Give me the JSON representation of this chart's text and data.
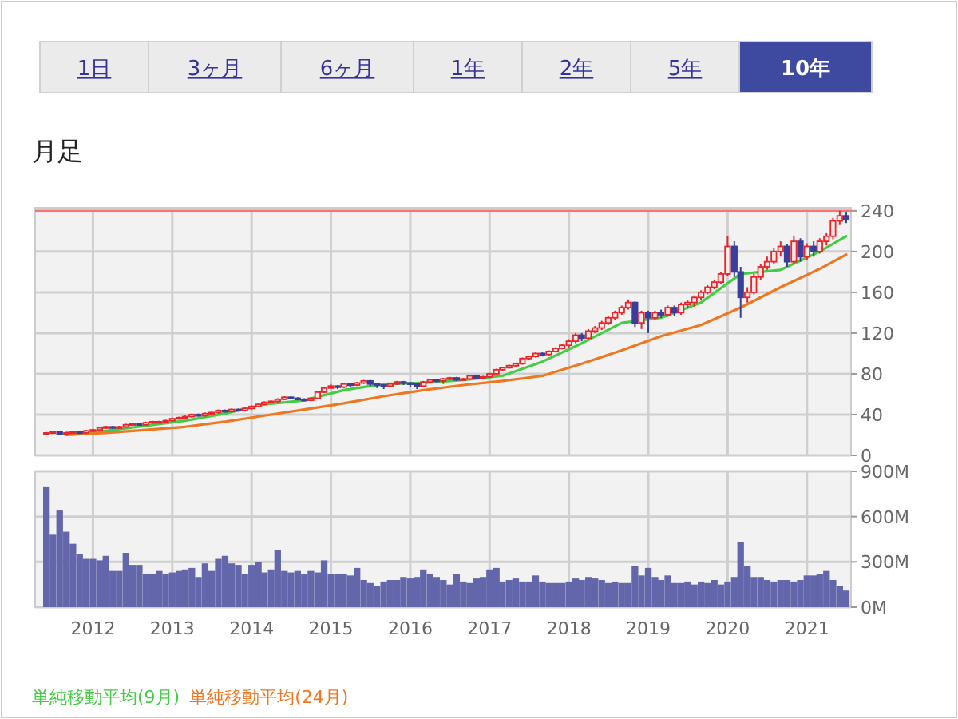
{
  "chart_data": [
    {
      "type": "other",
      "categories": [
        "1日",
        "3ヶ月",
        "6ヶ月",
        "1年",
        "2年",
        "5年",
        "10年"
      ],
      "colors": [
        "#ebebeb",
        "#ebebeb",
        "#ebebeb",
        "#ebebeb",
        "#ebebeb",
        "#ebebeb",
        "#3d4aa0"
      ]
    },
    {
      "type": "candlestick",
      "title": "月足",
      "xlim": [
        "2011-04-10",
        "2021-07-23"
      ],
      "ylim": [
        0,
        243
      ],
      "yticks": [
        0,
        40,
        80,
        120,
        160,
        200,
        240
      ],
      "xticks": [
        {
          "value": "2012-01-01",
          "label": null
        },
        {
          "value": "2013-01-01",
          "label": null
        },
        {
          "value": "2014-01-01",
          "label": null
        },
        {
          "value": "2015-01-01",
          "label": null
        },
        {
          "value": "2016-01-01",
          "label": null
        },
        {
          "value": "2017-01-01",
          "label": null
        },
        {
          "value": "2018-01-01",
          "label": null
        },
        {
          "value": "2019-01-01",
          "label": null
        },
        {
          "value": "2020-01-01",
          "label": null
        },
        {
          "value": "2021-01-01",
          "label": null
        }
      ],
      "tick_labels": "y",
      "grid": true,
      "legend": "bottom",
      "colors": [
        "#e8262a",
        "#e8262a",
        "#3a3f9c",
        "#e8262a",
        "#e8262a",
        "#3a3f9c",
        "#e8262a",
        "#e8262a",
        "#e8262a",
        "#e8262a",
        "#3a3f9c",
        "#e8262a",
        "#e8262a",
        "#e8262a",
        "#3a3f9c",
        "#e8262a",
        "#e8262a",
        "#e8262a",
        "#e8262a",
        "#e8262a",
        "#e8262a",
        "#e8262a",
        "#e8262a",
        "#3a3f9c",
        "#e8262a",
        "#e8262a",
        "#e8262a",
        "#3a3f9c",
        "#e8262a",
        "#3a3f9c",
        "#e8262a",
        "#e8262a",
        "#e8262a",
        "#e8262a",
        "#e8262a",
        "#e8262a",
        "#e8262a",
        "#3a3f9c",
        "#3a3f9c",
        "#3a3f9c",
        "#e8262a",
        "#e8262a",
        "#e8262a",
        "#e8262a",
        "#3a3f9c",
        "#e8262a",
        "#3a3f9c",
        "#e8262a",
        "#e8262a",
        "#3a3f9c",
        "#3a3f9c",
        "#3a3f9c",
        "#e8262a",
        "#e8262a",
        "#3a3f9c",
        "#3a3f9c",
        "#3a3f9c",
        "#e8262a",
        "#e8262a",
        "#3a3f9c",
        "#e8262a",
        "#e8262a",
        "#3a3f9c",
        "#e8262a",
        "#e8262a",
        "#3a3f9c",
        "#e8262a",
        "#e8262a",
        "#e8262a",
        "#e8262a",
        "#e8262a",
        "#e8262a",
        "#e8262a",
        "#e8262a",
        "#e8262a",
        "#3a3f9c",
        "#e8262a",
        "#e8262a",
        "#e8262a",
        "#e8262a",
        "#e8262a",
        "#3a3f9c",
        "#e8262a",
        "#e8262a",
        "#e8262a",
        "#e8262a",
        "#e8262a",
        "#e8262a",
        "#e8262a",
        "#3a3f9c",
        "#e8262a",
        "#3a3f9c",
        "#e8262a",
        "#3a3f9c",
        "#e8262a",
        "#3a3f9c",
        "#e8262a",
        "#e8262a",
        "#e8262a",
        "#e8262a",
        "#e8262a",
        "#e8262a",
        "#e8262a",
        "#e8262a",
        "#3a3f9c",
        "#3a3f9c",
        "#e8262a",
        "#e8262a",
        "#e8262a",
        "#e8262a",
        "#e8262a",
        "#e8262a",
        "#3a3f9c",
        "#e8262a",
        "#3a3f9c",
        "#e8262a",
        "#3a3f9c",
        "#e8262a",
        "#e8262a",
        "#e8262a",
        "#e8262a",
        "#3a3f9c"
      ],
      "ref_lines": [
        {
          "axis": "y",
          "value": 240,
          "color": "#ff7070"
        }
      ],
      "x": [
        "2011-06",
        "2011-07",
        "2011-08",
        "2011-09",
        "2011-10",
        "2011-11",
        "2011-12",
        "2012-01",
        "2012-02",
        "2012-03",
        "2012-04",
        "2012-05",
        "2012-06",
        "2012-07",
        "2012-08",
        "2012-09",
        "2012-10",
        "2012-11",
        "2012-12",
        "2013-01",
        "2013-02",
        "2013-03",
        "2013-04",
        "2013-05",
        "2013-06",
        "2013-07",
        "2013-08",
        "2013-09",
        "2013-10",
        "2013-11",
        "2013-12",
        "2014-01",
        "2014-02",
        "2014-03",
        "2014-04",
        "2014-05",
        "2014-06",
        "2014-07",
        "2014-08",
        "2014-09",
        "2014-10",
        "2014-11",
        "2014-12",
        "2015-01",
        "2015-02",
        "2015-03",
        "2015-04",
        "2015-05",
        "2015-06",
        "2015-07",
        "2015-08",
        "2015-09",
        "2015-10",
        "2015-11",
        "2015-12",
        "2016-01",
        "2016-02",
        "2016-03",
        "2016-04",
        "2016-05",
        "2016-06",
        "2016-07",
        "2016-08",
        "2016-09",
        "2016-10",
        "2016-11",
        "2016-12",
        "2017-01",
        "2017-02",
        "2017-03",
        "2017-04",
        "2017-05",
        "2017-06",
        "2017-07",
        "2017-08",
        "2017-09",
        "2017-10",
        "2017-11",
        "2017-12",
        "2018-01",
        "2018-02",
        "2018-03",
        "2018-04",
        "2018-05",
        "2018-06",
        "2018-07",
        "2018-08",
        "2018-09",
        "2018-10",
        "2018-11",
        "2018-12",
        "2019-01",
        "2019-02",
        "2019-03",
        "2019-04",
        "2019-05",
        "2019-06",
        "2019-07",
        "2019-08",
        "2019-09",
        "2019-10",
        "2019-11",
        "2019-12",
        "2020-01",
        "2020-02",
        "2020-03",
        "2020-04",
        "2020-05",
        "2020-06",
        "2020-07",
        "2020-08",
        "2020-09",
        "2020-10",
        "2020-11",
        "2020-12",
        "2021-01",
        "2021-02",
        "2021-03",
        "2021-04",
        "2021-05",
        "2021-06",
        "2021-07"
      ],
      "ohlc": [
        [
          21,
          23,
          20,
          22
        ],
        [
          22,
          24,
          21,
          23
        ],
        [
          23,
          24,
          20,
          21
        ],
        [
          21,
          23,
          20,
          22
        ],
        [
          22,
          24,
          21,
          23
        ],
        [
          23,
          24,
          21,
          22
        ],
        [
          22,
          25,
          21,
          24
        ],
        [
          24,
          26,
          23,
          25
        ],
        [
          25,
          28,
          24,
          27
        ],
        [
          27,
          29,
          26,
          28
        ],
        [
          28,
          29,
          26,
          27
        ],
        [
          27,
          29,
          26,
          28
        ],
        [
          28,
          31,
          27,
          30
        ],
        [
          30,
          32,
          29,
          31
        ],
        [
          31,
          32,
          29,
          30
        ],
        [
          30,
          33,
          29,
          32
        ],
        [
          32,
          34,
          31,
          33
        ],
        [
          33,
          34,
          32,
          33
        ],
        [
          33,
          35,
          32,
          34
        ],
        [
          34,
          37,
          33,
          36
        ],
        [
          36,
          38,
          35,
          37
        ],
        [
          37,
          39,
          36,
          38
        ],
        [
          38,
          41,
          37,
          40
        ],
        [
          40,
          41,
          38,
          39
        ],
        [
          39,
          42,
          38,
          41
        ],
        [
          41,
          43,
          40,
          42
        ],
        [
          42,
          45,
          41,
          44
        ],
        [
          44,
          45,
          42,
          43
        ],
        [
          43,
          46,
          42,
          45
        ],
        [
          45,
          46,
          43,
          44
        ],
        [
          44,
          47,
          43,
          46
        ],
        [
          46,
          49,
          45,
          48
        ],
        [
          48,
          51,
          47,
          50
        ],
        [
          50,
          53,
          49,
          52
        ],
        [
          52,
          54,
          51,
          53
        ],
        [
          53,
          56,
          52,
          55
        ],
        [
          55,
          58,
          54,
          57
        ],
        [
          57,
          58,
          55,
          56
        ],
        [
          56,
          57,
          54,
          55
        ],
        [
          55,
          56,
          53,
          54
        ],
        [
          54,
          57,
          53,
          56
        ],
        [
          56,
          63,
          55,
          62
        ],
        [
          62,
          67,
          61,
          66
        ],
        [
          66,
          70,
          65,
          68
        ],
        [
          68,
          69,
          65,
          67
        ],
        [
          67,
          71,
          66,
          70
        ],
        [
          70,
          71,
          67,
          69
        ],
        [
          69,
          72,
          68,
          71
        ],
        [
          71,
          74,
          70,
          73
        ],
        [
          73,
          74,
          68,
          70
        ],
        [
          70,
          71,
          66,
          69
        ],
        [
          69,
          70,
          65,
          68
        ],
        [
          68,
          71,
          67,
          70
        ],
        [
          70,
          73,
          69,
          72
        ],
        [
          72,
          73,
          69,
          71
        ],
        [
          71,
          72,
          67,
          70
        ],
        [
          70,
          71,
          65,
          68
        ],
        [
          68,
          73,
          67,
          72
        ],
        [
          72,
          75,
          71,
          74
        ],
        [
          74,
          75,
          71,
          73
        ],
        [
          73,
          76,
          70,
          75
        ],
        [
          75,
          77,
          74,
          76
        ],
        [
          76,
          77,
          73,
          74
        ],
        [
          74,
          76,
          73,
          75
        ],
        [
          75,
          79,
          74,
          78
        ],
        [
          78,
          79,
          75,
          76
        ],
        [
          76,
          78,
          75,
          77
        ],
        [
          77,
          81,
          76,
          80
        ],
        [
          80,
          85,
          79,
          84
        ],
        [
          84,
          87,
          83,
          86
        ],
        [
          86,
          89,
          85,
          88
        ],
        [
          88,
          91,
          87,
          90
        ],
        [
          90,
          96,
          89,
          95
        ],
        [
          95,
          98,
          94,
          97
        ],
        [
          97,
          101,
          96,
          100
        ],
        [
          100,
          101,
          97,
          99
        ],
        [
          99,
          103,
          98,
          102
        ],
        [
          102,
          106,
          101,
          105
        ],
        [
          105,
          109,
          104,
          108
        ],
        [
          108,
          114,
          106,
          112
        ],
        [
          112,
          120,
          110,
          118
        ],
        [
          118,
          120,
          112,
          115
        ],
        [
          115,
          124,
          114,
          122
        ],
        [
          122,
          127,
          120,
          125
        ],
        [
          125,
          132,
          123,
          130
        ],
        [
          130,
          137,
          128,
          135
        ],
        [
          135,
          142,
          133,
          140
        ],
        [
          140,
          147,
          138,
          145
        ],
        [
          145,
          153,
          143,
          150
        ],
        [
          150,
          151,
          126,
          130
        ],
        [
          130,
          142,
          124,
          140
        ],
        [
          140,
          142,
          120,
          135
        ],
        [
          135,
          142,
          133,
          140
        ],
        [
          140,
          143,
          135,
          138
        ],
        [
          138,
          147,
          136,
          145
        ],
        [
          145,
          147,
          137,
          140
        ],
        [
          140,
          150,
          138,
          148
        ],
        [
          148,
          152,
          145,
          150
        ],
        [
          150,
          157,
          146,
          155
        ],
        [
          155,
          162,
          152,
          160
        ],
        [
          160,
          167,
          158,
          165
        ],
        [
          165,
          172,
          163,
          170
        ],
        [
          170,
          180,
          168,
          178
        ],
        [
          178,
          215,
          176,
          205
        ],
        [
          205,
          210,
          175,
          180
        ],
        [
          180,
          185,
          135,
          155
        ],
        [
          155,
          165,
          150,
          160
        ],
        [
          160,
          178,
          158,
          175
        ],
        [
          175,
          188,
          172,
          185
        ],
        [
          185,
          195,
          182,
          190
        ],
        [
          190,
          203,
          188,
          200
        ],
        [
          200,
          210,
          195,
          205
        ],
        [
          205,
          207,
          185,
          190
        ],
        [
          190,
          215,
          188,
          210
        ],
        [
          210,
          213,
          190,
          195
        ],
        [
          195,
          208,
          192,
          205
        ],
        [
          205,
          210,
          195,
          200
        ],
        [
          200,
          213,
          198,
          210
        ],
        [
          210,
          218,
          206,
          215
        ],
        [
          215,
          233,
          212,
          230
        ],
        [
          230,
          240,
          226,
          235
        ],
        [
          235,
          239,
          228,
          232
        ]
      ],
      "series": [
        {
          "type": "line",
          "name": "単純移動平均(9月)",
          "color": "#44cc44",
          "x": [
            "2011-09",
            "2012-03",
            "2012-09",
            "2013-03",
            "2013-09",
            "2014-03",
            "2014-09",
            "2015-03",
            "2015-09",
            "2016-03",
            "2016-09",
            "2017-03",
            "2017-09",
            "2018-03",
            "2018-09",
            "2019-03",
            "2019-09",
            "2020-03",
            "2020-09",
            "2021-03",
            "2021-07"
          ],
          "values": [
            22,
            24,
            29,
            34,
            41,
            50,
            54,
            64,
            70,
            71,
            74,
            78,
            92,
            110,
            130,
            135,
            150,
            178,
            182,
            200,
            215
          ]
        },
        {
          "type": "line",
          "name": "単純移動平均(24月)",
          "color": "#ee7722",
          "x": [
            "2011-09",
            "2012-03",
            "2012-09",
            "2013-03",
            "2013-09",
            "2014-03",
            "2014-09",
            "2015-03",
            "2015-09",
            "2016-03",
            "2016-09",
            "2017-03",
            "2017-09",
            "2018-03",
            "2018-09",
            "2019-03",
            "2019-09",
            "2020-03",
            "2020-09",
            "2021-03",
            "2021-07"
          ],
          "values": [
            20,
            22,
            25,
            28,
            33,
            39,
            45,
            51,
            58,
            64,
            69,
            73,
            78,
            90,
            103,
            117,
            128,
            145,
            165,
            183,
            197
          ]
        }
      ]
    },
    {
      "type": "bar",
      "color": "#6366aa",
      "xlim": [
        "2011-04-10",
        "2021-07-23"
      ],
      "ylim": [
        0,
        900
      ],
      "yticks": [
        {
          "value": 0,
          "label": "0M"
        },
        {
          "value": 300,
          "label": "300M"
        },
        {
          "value": 600,
          "label": "600M"
        },
        {
          "value": 900,
          "label": "900M"
        }
      ],
      "xticks": [
        {
          "value": "2012-01-01",
          "label": "2012"
        },
        {
          "value": "2013-01-01",
          "label": "2013"
        },
        {
          "value": "2014-01-01",
          "label": "2014"
        },
        {
          "value": "2015-01-01",
          "label": "2015"
        },
        {
          "value": "2016-01-01",
          "label": "2016"
        },
        {
          "value": "2017-01-01",
          "label": "2017"
        },
        {
          "value": "2018-01-01",
          "label": "2018"
        },
        {
          "value": "2019-01-01",
          "label": "2019"
        },
        {
          "value": "2020-01-01",
          "label": "2020"
        },
        {
          "value": "2021-01-01",
          "label": "2021"
        }
      ],
      "grid": true,
      "x": [
        "2011-06",
        "2011-07",
        "2011-08",
        "2011-09",
        "2011-10",
        "2011-11",
        "2011-12",
        "2012-01",
        "2012-02",
        "2012-03",
        "2012-04",
        "2012-05",
        "2012-06",
        "2012-07",
        "2012-08",
        "2012-09",
        "2012-10",
        "2012-11",
        "2012-12",
        "2013-01",
        "2013-02",
        "2013-03",
        "2013-04",
        "2013-05",
        "2013-06",
        "2013-07",
        "2013-08",
        "2013-09",
        "2013-10",
        "2013-11",
        "2013-12",
        "2014-01",
        "2014-02",
        "2014-03",
        "2014-04",
        "2014-05",
        "2014-06",
        "2014-07",
        "2014-08",
        "2014-09",
        "2014-10",
        "2014-11",
        "2014-12",
        "2015-01",
        "2015-02",
        "2015-03",
        "2015-04",
        "2015-05",
        "2015-06",
        "2015-07",
        "2015-08",
        "2015-09",
        "2015-10",
        "2015-11",
        "2015-12",
        "2016-01",
        "2016-02",
        "2016-03",
        "2016-04",
        "2016-05",
        "2016-06",
        "2016-07",
        "2016-08",
        "2016-09",
        "2016-10",
        "2016-11",
        "2016-12",
        "2017-01",
        "2017-02",
        "2017-03",
        "2017-04",
        "2017-05",
        "2017-06",
        "2017-07",
        "2017-08",
        "2017-09",
        "2017-10",
        "2017-11",
        "2017-12",
        "2018-01",
        "2018-02",
        "2018-03",
        "2018-04",
        "2018-05",
        "2018-06",
        "2018-07",
        "2018-08",
        "2018-09",
        "2018-10",
        "2018-11",
        "2018-12",
        "2019-01",
        "2019-02",
        "2019-03",
        "2019-04",
        "2019-05",
        "2019-06",
        "2019-07",
        "2019-08",
        "2019-09",
        "2019-10",
        "2019-11",
        "2019-12",
        "2020-01",
        "2020-02",
        "2020-03",
        "2020-04",
        "2020-05",
        "2020-06",
        "2020-07",
        "2020-08",
        "2020-09",
        "2020-10",
        "2020-11",
        "2020-12",
        "2021-01",
        "2021-02",
        "2021-03",
        "2021-04",
        "2021-05",
        "2021-06",
        "2021-07"
      ],
      "values": [
        800,
        480,
        640,
        500,
        420,
        350,
        320,
        320,
        310,
        340,
        240,
        240,
        360,
        280,
        280,
        220,
        220,
        240,
        220,
        230,
        240,
        250,
        260,
        200,
        290,
        240,
        320,
        340,
        290,
        280,
        220,
        280,
        300,
        230,
        250,
        380,
        240,
        230,
        240,
        220,
        240,
        230,
        310,
        220,
        220,
        220,
        210,
        260,
        180,
        160,
        140,
        170,
        180,
        180,
        200,
        190,
        200,
        250,
        220,
        200,
        180,
        150,
        220,
        170,
        160,
        190,
        200,
        250,
        260,
        170,
        180,
        190,
        170,
        170,
        210,
        170,
        160,
        160,
        160,
        170,
        190,
        180,
        200,
        190,
        180,
        160,
        170,
        160,
        160,
        270,
        210,
        260,
        200,
        180,
        210,
        160,
        160,
        170,
        150,
        170,
        160,
        180,
        150,
        170,
        200,
        430,
        270,
        200,
        200,
        180,
        170,
        180,
        180,
        170,
        180,
        210,
        210,
        220,
        240,
        180,
        140,
        110
      ]
    }
  ]
}
